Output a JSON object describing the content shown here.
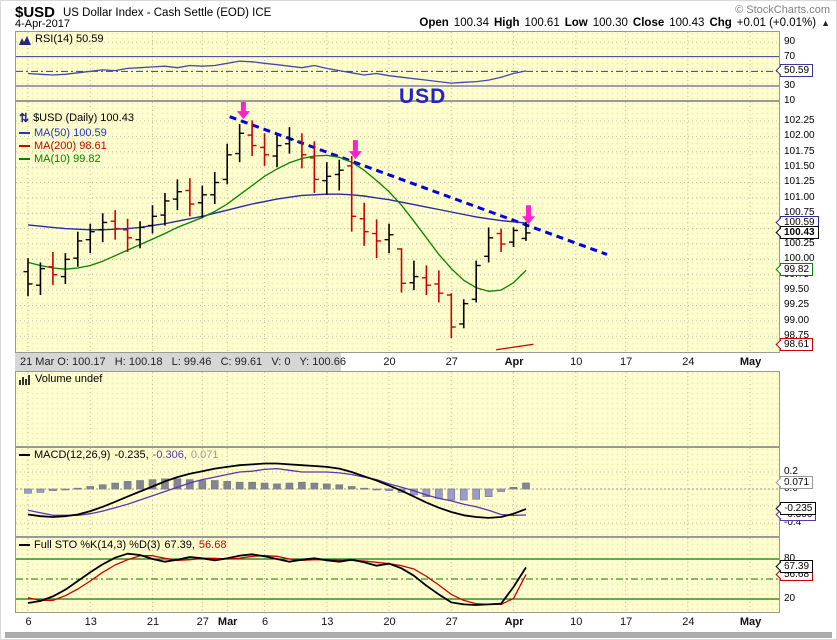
{
  "header": {
    "symbol": "$USD",
    "title": "US Dollar Index - Cash Settle (EOD) ICE",
    "date": "4-Apr-2017",
    "copyright": "© StockCharts.com",
    "quote": {
      "open_label": "Open",
      "open": "100.34",
      "high_label": "High",
      "high": "100.61",
      "low_label": "Low",
      "low": "100.30",
      "close_label": "Close",
      "close": "100.43",
      "chg_label": "Chg",
      "chg": "+0.01 (+0.01%)",
      "arrow": "▲"
    }
  },
  "readout": {
    "text": "21 Mar O: 100.17   H: 100.18   L: 99.46   C: 99.61   V: 0   Y: 100.66"
  },
  "colors": {
    "grid": "#BDBDA8",
    "border": "#999999",
    "navy": "#3A3A99",
    "rsi_line": "#4747AA",
    "bar_up": "#000000",
    "bar_down": "#CC0000",
    "ma50": "#2929A3",
    "ma10": "#068200",
    "ma200": "#CC0000",
    "trendline": "#0000E0",
    "magenta": "#FF22CC",
    "macd_line": "#000000",
    "signal_line": "#5A35B8",
    "hist_pos": "#85858F",
    "hist_neg": "#9C9CCC",
    "hist_edge": "#73738C",
    "sto_k": "#000000",
    "sto_d": "#CC0000",
    "sto_ref": "#0B7A0B",
    "panel_bg": "#FFFFCE"
  },
  "chart_data": {
    "type": "ohlc",
    "title": "$USD US Dollar Index - Cash Settle (EOD) ICE",
    "x_axis": {
      "grid_i": [
        0,
        5,
        10,
        14,
        16,
        19,
        24,
        29,
        34,
        39,
        44,
        48,
        53,
        58
      ],
      "bottom_ticks": [
        {
          "i": 0,
          "t": "6",
          "bold": false
        },
        {
          "i": 5,
          "t": "13",
          "bold": false
        },
        {
          "i": 10,
          "t": "21",
          "bold": false
        },
        {
          "i": 14,
          "t": "27",
          "bold": false
        },
        {
          "i": 16,
          "t": "Mar",
          "bold": true
        },
        {
          "i": 19,
          "t": "6",
          "bold": false
        },
        {
          "i": 24,
          "t": "13",
          "bold": false
        },
        {
          "i": 29,
          "t": "20",
          "bold": false
        },
        {
          "i": 34,
          "t": "27",
          "bold": false
        },
        {
          "i": 39,
          "t": "Apr",
          "bold": true
        },
        {
          "i": 44,
          "t": "10",
          "bold": false
        },
        {
          "i": 48,
          "t": "17",
          "bold": false
        },
        {
          "i": 53,
          "t": "24",
          "bold": false
        },
        {
          "i": 58,
          "t": "May",
          "bold": true
        }
      ],
      "mid_ticks": [
        {
          "i": 29,
          "t": "20",
          "bold": false
        },
        {
          "i": 34,
          "t": "27",
          "bold": false
        },
        {
          "i": 39,
          "t": "Apr",
          "bold": true
        },
        {
          "i": 44,
          "t": "10",
          "bold": false
        },
        {
          "i": 48,
          "t": "17",
          "bold": false
        },
        {
          "i": 53,
          "t": "24",
          "bold": false
        },
        {
          "i": 58,
          "t": "May",
          "bold": true
        }
      ]
    },
    "rsi": {
      "legend": "RSI(14) 50.59",
      "overbought": 70,
      "oversold": 30,
      "mid": 50,
      "values": [
        47,
        46,
        45,
        46,
        48,
        50,
        52,
        51,
        54,
        55,
        56,
        57,
        55,
        58,
        57,
        58,
        61,
        64,
        63,
        61,
        59,
        57,
        55,
        58,
        54,
        51,
        48,
        45,
        47,
        44,
        42,
        40,
        38,
        36,
        34,
        35,
        36,
        38,
        42,
        47,
        50.59
      ],
      "axis": [
        {
          "v": 90,
          "t": "90"
        },
        {
          "v": 70,
          "t": "70"
        },
        {
          "v": 30,
          "t": "30"
        },
        {
          "v": 10,
          "t": "10"
        }
      ],
      "bubbles": [
        {
          "v": 50.59,
          "t": "50.59",
          "c": "#3A3A99",
          "bold": false
        }
      ]
    },
    "price": {
      "legend_title": "$USD (Daily) 100.43",
      "legend_ma50": "MA(50) 100.59",
      "legend_ma200": "MA(200) 98.61",
      "legend_ma10": "MA(10) 99.82",
      "note": "USD",
      "bars": [
        [
          99.8,
          100.02,
          99.4,
          99.6,
          "b"
        ],
        [
          99.58,
          99.95,
          99.42,
          99.85,
          "b"
        ],
        [
          99.88,
          100.12,
          99.58,
          99.75,
          "r"
        ],
        [
          99.72,
          100.1,
          99.6,
          100.0,
          "b"
        ],
        [
          100.02,
          100.45,
          99.88,
          100.3,
          "b"
        ],
        [
          100.32,
          100.58,
          100.1,
          100.45,
          "b"
        ],
        [
          100.48,
          100.75,
          100.28,
          100.6,
          "b"
        ],
        [
          100.62,
          100.8,
          100.32,
          100.5,
          "r"
        ],
        [
          100.48,
          100.66,
          100.12,
          100.35,
          "r"
        ],
        [
          100.32,
          100.62,
          100.18,
          100.52,
          "b"
        ],
        [
          100.55,
          100.88,
          100.42,
          100.7,
          "b"
        ],
        [
          100.72,
          101.08,
          100.55,
          100.95,
          "b"
        ],
        [
          100.98,
          101.3,
          100.8,
          101.1,
          "b"
        ],
        [
          101.12,
          101.32,
          100.7,
          100.9,
          "r"
        ],
        [
          100.92,
          101.2,
          100.68,
          101.05,
          "b"
        ],
        [
          101.05,
          101.42,
          100.9,
          101.25,
          "b"
        ],
        [
          101.3,
          101.88,
          101.22,
          101.7,
          "b"
        ],
        [
          101.72,
          102.2,
          101.58,
          102.05,
          "b"
        ],
        [
          102.02,
          102.26,
          101.68,
          101.85,
          "r"
        ],
        [
          101.82,
          102.05,
          101.52,
          101.7,
          "r"
        ],
        [
          101.68,
          102.02,
          101.5,
          101.85,
          "b"
        ],
        [
          101.88,
          102.15,
          101.72,
          101.95,
          "b"
        ],
        [
          101.92,
          102.05,
          101.48,
          101.7,
          "r"
        ],
        [
          101.65,
          101.92,
          101.08,
          101.3,
          "r"
        ],
        [
          101.28,
          101.58,
          101.05,
          101.35,
          "b"
        ],
        [
          101.38,
          101.62,
          101.12,
          101.45,
          "b"
        ],
        [
          101.52,
          101.68,
          100.45,
          100.7,
          "r"
        ],
        [
          100.66,
          100.92,
          100.22,
          100.45,
          "r"
        ],
        [
          100.42,
          100.65,
          100.02,
          100.3,
          "r"
        ],
        [
          100.32,
          100.58,
          100.1,
          100.4,
          "b"
        ],
        [
          100.17,
          100.18,
          99.46,
          99.61,
          "r"
        ],
        [
          99.62,
          99.98,
          99.5,
          99.72,
          "b"
        ],
        [
          99.7,
          99.9,
          99.42,
          99.58,
          "r"
        ],
        [
          99.6,
          99.82,
          99.3,
          99.45,
          "r"
        ],
        [
          99.42,
          99.45,
          98.72,
          98.9,
          "r"
        ],
        [
          98.95,
          99.35,
          98.88,
          99.28,
          "b"
        ],
        [
          99.35,
          99.98,
          99.3,
          99.9,
          "b"
        ],
        [
          100.05,
          100.52,
          99.95,
          100.35,
          "b"
        ],
        [
          100.42,
          100.5,
          100.12,
          100.25,
          "r"
        ],
        [
          100.28,
          100.52,
          100.2,
          100.47,
          "b"
        ],
        [
          100.34,
          100.61,
          100.3,
          100.43,
          "b"
        ]
      ],
      "ma50": [
        100.56,
        100.54,
        100.52,
        100.5,
        100.49,
        100.48,
        100.48,
        100.49,
        100.5,
        100.52,
        100.55,
        100.58,
        100.62,
        100.66,
        100.7,
        100.75,
        100.8,
        100.85,
        100.9,
        100.94,
        100.98,
        101.01,
        101.04,
        101.05,
        101.06,
        101.06,
        101.05,
        101.03,
        101.0,
        100.97,
        100.93,
        100.89,
        100.85,
        100.81,
        100.77,
        100.73,
        100.69,
        100.66,
        100.63,
        100.61,
        100.59
      ],
      "ma10": [
        99.95,
        99.9,
        99.86,
        99.84,
        99.86,
        99.9,
        99.97,
        100.06,
        100.15,
        100.24,
        100.33,
        100.42,
        100.52,
        100.6,
        100.68,
        100.78,
        100.9,
        101.05,
        101.2,
        101.35,
        101.47,
        101.57,
        101.64,
        101.68,
        101.69,
        101.66,
        101.58,
        101.45,
        101.28,
        101.1,
        100.88,
        100.62,
        100.35,
        100.08,
        99.85,
        99.66,
        99.54,
        99.48,
        99.5,
        99.62,
        99.82
      ],
      "ma200_seg": {
        "i1": 37.6,
        "v1": 98.53,
        "i2": 40.6,
        "v2": 98.62
      },
      "trendline": {
        "i1": 16.2,
        "v1": 102.32,
        "i2": 46.5,
        "v2": 100.08
      },
      "arrows": [
        {
          "i": 17.3,
          "tip": 102.28
        },
        {
          "i": 26.3,
          "tip": 101.63
        },
        {
          "i": 40.2,
          "tip": 100.57
        }
      ],
      "axis": [
        {
          "v": 102.25,
          "t": "102.25"
        },
        {
          "v": 102.0,
          "t": "102.00"
        },
        {
          "v": 101.75,
          "t": "101.75"
        },
        {
          "v": 101.5,
          "t": "101.50"
        },
        {
          "v": 101.25,
          "t": "101.25"
        },
        {
          "v": 101.0,
          "t": "101.00"
        },
        {
          "v": 100.75,
          "t": "100.75"
        },
        {
          "v": 100.25,
          "t": "100.25"
        },
        {
          "v": 100.0,
          "t": "100.00"
        },
        {
          "v": 99.75,
          "t": "99.75"
        },
        {
          "v": 99.5,
          "t": "99.50"
        },
        {
          "v": 99.25,
          "t": "99.25"
        },
        {
          "v": 99.0,
          "t": "99.00"
        },
        {
          "v": 98.75,
          "t": "98.75"
        }
      ],
      "bubbles": [
        {
          "v": 100.59,
          "t": "100.59",
          "c": "#2929A3",
          "bold": false
        },
        {
          "v": 100.43,
          "t": "100.43",
          "c": "#000000",
          "bold": true
        },
        {
          "v": 99.82,
          "t": "99.82",
          "c": "#068200",
          "bold": false
        },
        {
          "v": 98.61,
          "t": "98.61",
          "c": "#CC0000",
          "bold": false
        }
      ]
    },
    "volume": {
      "legend": "Volume undef"
    },
    "macd": {
      "legend_name": "MACD(12,26,9)",
      "legend_v1": "-0.235,",
      "legend_v2": "-0.306,",
      "legend_v3": "0.071",
      "macd": [
        -0.3,
        -0.32,
        -0.33,
        -0.32,
        -0.3,
        -0.26,
        -0.21,
        -0.15,
        -0.09,
        -0.03,
        0.03,
        0.09,
        0.14,
        0.18,
        0.21,
        0.24,
        0.26,
        0.28,
        0.29,
        0.3,
        0.3,
        0.29,
        0.28,
        0.27,
        0.26,
        0.24,
        0.2,
        0.15,
        0.1,
        0.04,
        -0.02,
        -0.09,
        -0.16,
        -0.22,
        -0.27,
        -0.31,
        -0.33,
        -0.34,
        -0.33,
        -0.29,
        -0.235
      ],
      "signal": [
        -0.25,
        -0.28,
        -0.31,
        -0.31,
        -0.31,
        -0.29,
        -0.26,
        -0.22,
        -0.18,
        -0.13,
        -0.08,
        -0.03,
        0.02,
        0.07,
        0.11,
        0.14,
        0.17,
        0.2,
        0.21,
        0.23,
        0.24,
        0.22,
        0.2,
        0.2,
        0.2,
        0.19,
        0.17,
        0.14,
        0.11,
        0.06,
        0.02,
        -0.02,
        -0.07,
        -0.11,
        -0.14,
        -0.18,
        -0.21,
        -0.25,
        -0.3,
        -0.31,
        -0.306
      ],
      "hist": [
        -0.05,
        -0.04,
        -0.02,
        -0.01,
        0.01,
        0.03,
        0.05,
        0.07,
        0.09,
        0.1,
        0.11,
        0.12,
        0.12,
        0.11,
        0.1,
        0.1,
        0.09,
        0.08,
        0.08,
        0.07,
        0.06,
        0.07,
        0.08,
        0.07,
        0.06,
        0.05,
        0.03,
        0.01,
        -0.01,
        -0.02,
        -0.04,
        -0.07,
        -0.09,
        -0.11,
        -0.13,
        -0.13,
        -0.12,
        -0.09,
        -0.03,
        0.02,
        0.071
      ],
      "axis": [
        {
          "v": 0.2,
          "t": "0.2"
        },
        {
          "v": 0,
          "t": "0.0"
        },
        {
          "v": -0.4,
          "t": "-0.4"
        }
      ],
      "bubbles": [
        {
          "v": 0.071,
          "t": "0.071",
          "c": "#999999",
          "bold": false
        },
        {
          "v": -0.306,
          "t": "-0.306",
          "c": "#5A35B8",
          "bold": false
        },
        {
          "v": -0.235,
          "t": "-0.235",
          "c": "#000000",
          "bold": false
        }
      ]
    },
    "sto": {
      "legend_name": "Full STO %K(14,3) %D(3)",
      "legend_v1": "67.39,",
      "legend_v2": "56.68",
      "overbought": 80,
      "oversold": 20,
      "mid": 50,
      "k": [
        14,
        17,
        24,
        34,
        47,
        60,
        72,
        82,
        88,
        86,
        80,
        76,
        79,
        83,
        81,
        78,
        81,
        85,
        87,
        84,
        80,
        76,
        79,
        81,
        78,
        76,
        79,
        75,
        70,
        73,
        66,
        55,
        40,
        27,
        15,
        12,
        11,
        12,
        13,
        38,
        67.39
      ],
      "d": [
        22,
        18,
        18,
        25,
        35,
        47,
        60,
        71,
        79,
        85,
        85,
        81,
        78,
        79,
        81,
        81,
        80,
        81,
        84,
        85,
        84,
        80,
        78,
        79,
        79,
        78,
        78,
        77,
        75,
        73,
        70,
        65,
        54,
        41,
        27,
        18,
        13,
        12,
        12,
        21,
        56.68
      ],
      "axis": [
        {
          "v": 80,
          "t": "80"
        },
        {
          "v": 20,
          "t": "20"
        }
      ],
      "bubbles": [
        {
          "v": 56.68,
          "t": "56.68",
          "c": "#CC0000",
          "bold": false
        },
        {
          "v": 67.39,
          "t": "67.39",
          "c": "#000000",
          "bold": false
        }
      ]
    }
  }
}
